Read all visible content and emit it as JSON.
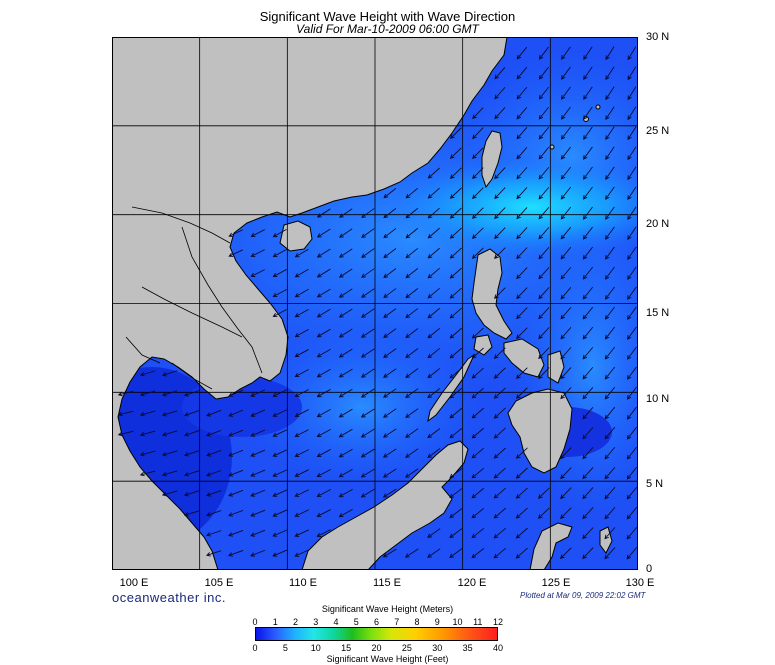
{
  "title": "Significant Wave Height with Wave Direction",
  "subtitle": "Valid For Mar-10-2009 06:00 GMT",
  "map": {
    "extent": {
      "lon": [
        100,
        130
      ],
      "lat": [
        0,
        30
      ]
    },
    "grid_spacing_deg": 5,
    "lon_labels": [
      "100 E",
      "105 E",
      "110 E",
      "115 E",
      "120 E",
      "125 E",
      "130 E"
    ],
    "lat_labels": [
      "0",
      "5 N",
      "10 N",
      "15 N",
      "20 N",
      "25 N",
      "30 N"
    ],
    "arrow_direction": "toward southwest",
    "colors": {
      "land": "#c0c0c0",
      "coast": "#000000",
      "grid": "#000000"
    }
  },
  "brand": "oceanweather inc.",
  "plotted_note": "Plotted at Mar 09, 2009 22:02 GMT",
  "colorbar": {
    "title_meters": "Significant Wave Height (Meters)",
    "title_feet": "Significant Wave Height (Feet)",
    "meter_ticks": [
      "0",
      "1",
      "2",
      "3",
      "4",
      "5",
      "6",
      "7",
      "8",
      "9",
      "10",
      "11",
      "12"
    ],
    "feet_ticks": [
      "0",
      "5",
      "10",
      "15",
      "20",
      "25",
      "30",
      "35",
      "40"
    ],
    "max_meters": 12,
    "max_feet": 40
  }
}
